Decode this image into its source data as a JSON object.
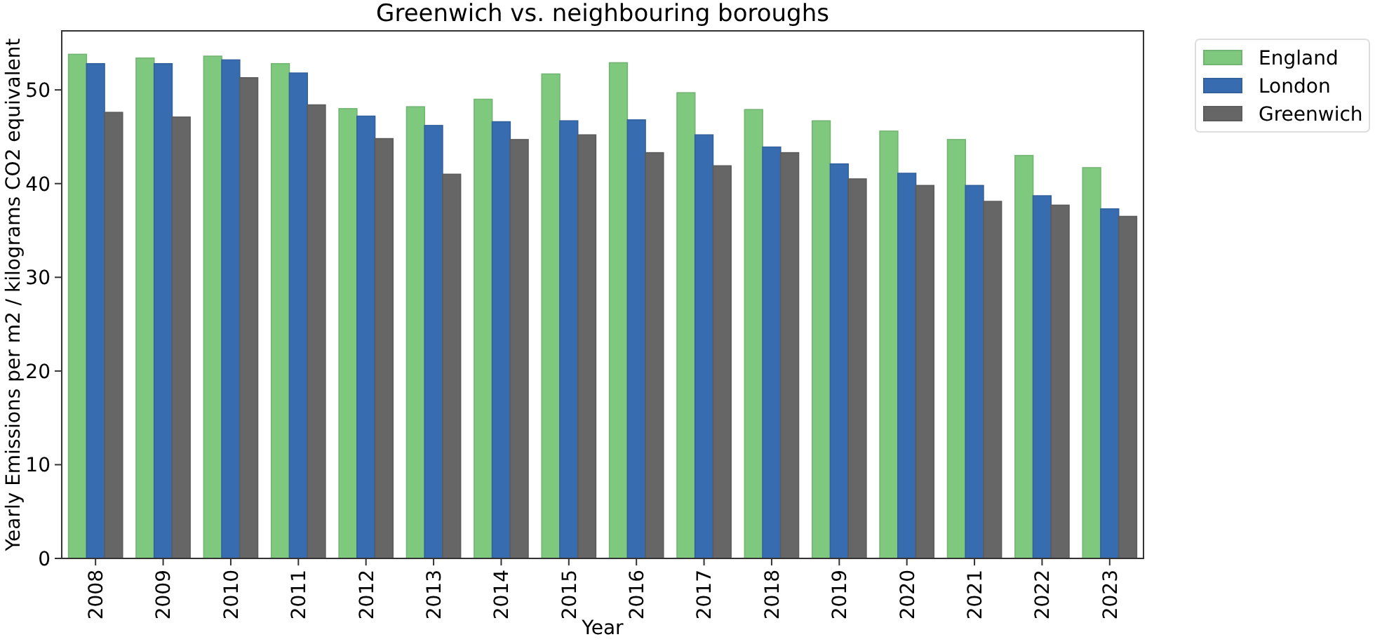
{
  "chart_data": {
    "type": "bar",
    "title": "Greenwich vs. neighbouring boroughs",
    "xlabel": "Year",
    "ylabel": "Yearly Emissions per m2 / kilograms CO2 equivalent",
    "categories": [
      "2008",
      "2009",
      "2010",
      "2011",
      "2012",
      "2013",
      "2014",
      "2015",
      "2016",
      "2017",
      "2018",
      "2019",
      "2020",
      "2021",
      "2022",
      "2023"
    ],
    "series": [
      {
        "name": "England",
        "color": "#7fc97f",
        "values": [
          53.8,
          53.4,
          53.6,
          52.8,
          48.0,
          48.2,
          49.0,
          51.7,
          52.9,
          49.7,
          47.9,
          46.7,
          45.6,
          44.7,
          43.0,
          41.7
        ]
      },
      {
        "name": "London",
        "color": "#386cb0",
        "values": [
          52.8,
          52.8,
          53.2,
          51.8,
          47.2,
          46.2,
          46.6,
          46.7,
          46.8,
          45.2,
          43.9,
          42.1,
          41.1,
          39.8,
          38.7,
          37.3
        ]
      },
      {
        "name": "Greenwich",
        "color": "#666666",
        "values": [
          47.6,
          47.1,
          51.3,
          48.4,
          44.8,
          41.0,
          44.7,
          45.2,
          43.3,
          41.9,
          43.3,
          40.5,
          39.8,
          38.1,
          37.7,
          36.5
        ]
      }
    ],
    "ylim": [
      0,
      56.3
    ],
    "yticks": [
      0,
      10,
      20,
      30,
      40,
      50
    ],
    "legend": "top right",
    "grid": false
  }
}
